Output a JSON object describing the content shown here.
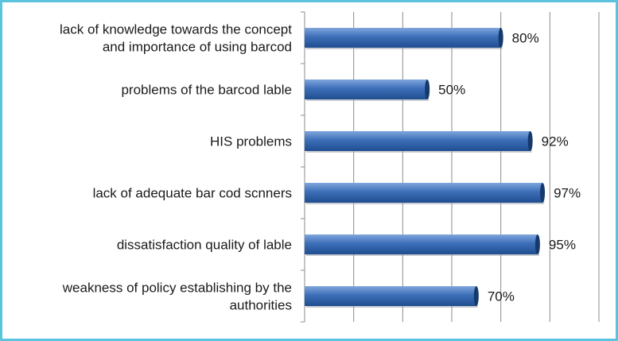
{
  "chart_data": {
    "type": "bar",
    "orientation": "horizontal",
    "categories": [
      [
        "lack of knowledge towards the concept",
        "and importance of using barcod"
      ],
      [
        "problems of the barcod lable"
      ],
      [
        "HIS problems"
      ],
      [
        "lack of adequate bar cod scnners"
      ],
      [
        "dissatisfaction quality of lable"
      ],
      [
        "weakness of policy establishing by the",
        "authorities"
      ]
    ],
    "values": [
      80,
      50,
      92,
      97,
      95,
      70
    ],
    "value_labels": [
      "80%",
      "50%",
      "92%",
      "97%",
      "95%",
      "70%"
    ],
    "xlim": [
      0,
      120
    ],
    "x_gridline_step": 20,
    "grid": true,
    "legend": "none",
    "colors": {
      "bar_top": "#7fa6dc",
      "bar_mid": "#3d6fb8",
      "bar_bottom": "#1f4d8f",
      "bar_end": "#16396d",
      "grid": "#8c8c8c",
      "axis": "#8c8c8c",
      "frame": "#5cc3df"
    }
  }
}
